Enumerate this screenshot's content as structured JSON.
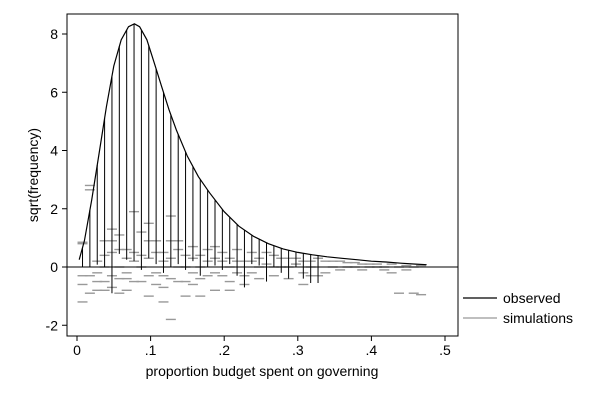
{
  "chart_data": {
    "type": "line",
    "title": "",
    "xlabel": "proportion budget spent on governing",
    "ylabel": "sqrt(frequency)",
    "xlim": [
      0,
      0.5
    ],
    "ylim": [
      -2.3,
      8.9
    ],
    "x_ticks": [
      0,
      0.1,
      0.2,
      0.3,
      0.4,
      0.5
    ],
    "x_tick_labels": [
      "0",
      ".1",
      ".2",
      ".3",
      ".4",
      ".5"
    ],
    "y_ticks": [
      -2,
      0,
      2,
      4,
      6,
      8
    ],
    "y_tick_labels": [
      "-2",
      "0",
      "2",
      "4",
      "6",
      "8"
    ],
    "grid": false,
    "legend_position": "bottom-right",
    "colors": {
      "observed": "#000000",
      "simulations": "#999999"
    },
    "series": [
      {
        "name": "observed",
        "kind": "line",
        "x": [
          0.003,
          0.01,
          0.02,
          0.03,
          0.04,
          0.05,
          0.06,
          0.07,
          0.078,
          0.085,
          0.095,
          0.105,
          0.115,
          0.125,
          0.135,
          0.15,
          0.165,
          0.18,
          0.2,
          0.22,
          0.24,
          0.26,
          0.28,
          0.3,
          0.32,
          0.34,
          0.36,
          0.38,
          0.4,
          0.42,
          0.44,
          0.46,
          0.475
        ],
        "y": [
          0.25,
          0.9,
          2.3,
          3.9,
          5.5,
          6.9,
          7.8,
          8.25,
          8.35,
          8.25,
          7.8,
          7.0,
          6.2,
          5.4,
          4.7,
          3.8,
          3.1,
          2.55,
          1.9,
          1.4,
          1.05,
          0.8,
          0.62,
          0.5,
          0.42,
          0.35,
          0.3,
          0.25,
          0.2,
          0.17,
          0.13,
          0.1,
          0.08
        ]
      },
      {
        "name": "simulations",
        "kind": "rootogram-bars",
        "bins": [
          0.0075,
          0.0175,
          0.0275,
          0.0375,
          0.0475,
          0.0575,
          0.0675,
          0.0775,
          0.0875,
          0.0975,
          0.1075,
          0.1175,
          0.1275,
          0.1375,
          0.1475,
          0.1575,
          0.1675,
          0.1775,
          0.1875,
          0.1975,
          0.2075,
          0.2175,
          0.2275,
          0.2375,
          0.2475,
          0.2575,
          0.2675,
          0.2775,
          0.2875,
          0.2975,
          0.3075,
          0.3175,
          0.3275,
          0.3375,
          0.3475,
          0.3575,
          0.3675,
          0.3775,
          0.3875,
          0.3975,
          0.4075,
          0.4175,
          0.4275,
          0.4375,
          0.4475,
          0.4575,
          0.4675
        ],
        "dash_bottoms": [
          [
            0.85,
            0.8,
            -0.3,
            -0.6,
            -1.2
          ],
          [
            2.8,
            2.65,
            -0.3,
            -0.9
          ],
          [
            -0.2,
            -0.8,
            0.2,
            -0.5
          ],
          [
            0.9,
            0.4,
            -0.5,
            0.0,
            -0.8
          ],
          [
            1.3,
            0.9,
            0.5,
            -0.3,
            -0.7
          ],
          [
            1.1,
            0.6,
            0.0,
            -0.4,
            -0.9
          ],
          [
            0.6,
            0.3,
            -0.4,
            -0.2,
            -0.8
          ],
          [
            1.9,
            0.5,
            0.2,
            -0.5
          ],
          [
            1.2,
            0.4,
            0.0,
            -0.5
          ],
          [
            1.5,
            0.9,
            0.3,
            -0.3,
            -1.0
          ],
          [
            0.9,
            0.5,
            -0.2,
            -0.6
          ],
          [
            0.5,
            0.2,
            -0.3,
            -0.7,
            -1.2
          ],
          [
            1.75,
            0.9,
            0.3,
            -0.4,
            -1.8
          ],
          [
            0.9,
            0.6,
            0.0,
            -0.5
          ],
          [
            0.4,
            0.0,
            -0.5,
            -1.0
          ],
          [
            0.7,
            0.3,
            -0.2,
            -0.6
          ],
          [
            0.4,
            0.0,
            -0.4,
            -1.0
          ],
          [
            0.6,
            0.2,
            -0.3
          ],
          [
            0.7,
            0.3,
            -0.2,
            -0.8
          ],
          [
            0.5,
            0.2,
            -0.3
          ],
          [
            0.3,
            0.0,
            -0.5,
            -0.8
          ],
          [
            0.6,
            0.2,
            -0.2
          ],
          [
            0.2,
            -0.3,
            -0.6
          ],
          [
            0.5,
            0.2,
            -0.2
          ],
          [
            0.3,
            0.0,
            -0.4
          ],
          [
            0.5,
            0.1
          ],
          [
            0.4,
            0.0,
            -0.3
          ],
          [
            0.3,
            0.0
          ],
          [
            0.3,
            0.0,
            -0.4
          ],
          [
            0.3,
            0.1
          ],
          [
            0.2,
            -0.2,
            -0.6
          ],
          [
            0.2,
            0.0,
            -0.3
          ],
          [
            0.3,
            -0.3
          ],
          [
            0.2,
            -0.2
          ],
          [
            0.2,
            0.0
          ],
          [
            0.2,
            -0.1
          ],
          [
            0.15,
            0.0
          ],
          [
            0.15,
            0.0
          ],
          [
            0.1,
            -0.1
          ],
          [
            0.1,
            0.0
          ],
          [
            0.1,
            0.0
          ],
          [
            0.0,
            -0.1
          ],
          [
            0.1,
            -0.2
          ],
          [
            0.0,
            -0.9
          ],
          [
            0.05,
            -0.1
          ],
          [
            0.0,
            -0.9
          ],
          [
            0.05,
            -0.95
          ]
        ]
      }
    ],
    "hanging_bars_bottom": [
      0.003,
      0.0,
      0.08,
      0.0,
      -0.9,
      0.45,
      0.25,
      0.2,
      -0.1,
      0.3,
      0.1,
      -0.2,
      0.0,
      0.1,
      -0.1,
      0.2,
      -0.3,
      0.0,
      0.05,
      -0.1,
      0.1,
      -0.3,
      -0.7,
      0.1,
      0.05,
      -0.5,
      0.0,
      -0.2,
      -0.4,
      0.0,
      -0.4,
      -0.55,
      -0.55
    ],
    "legend": [
      "observed",
      "simulations"
    ]
  }
}
